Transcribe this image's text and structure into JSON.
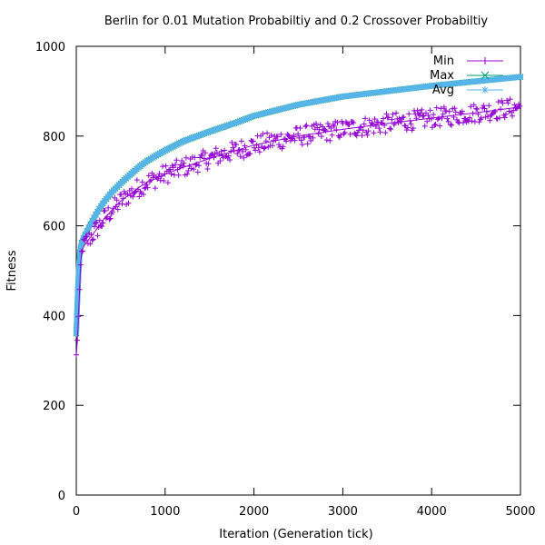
{
  "chart_data": {
    "type": "line",
    "title": "Berlin for 0.01 Mutation Probabiltiy and 0.2 Crossover Probabiltiy",
    "xlabel": "Iteration (Generation tick)",
    "ylabel": "Fitness",
    "xlim": [
      0,
      5000
    ],
    "ylim": [
      0,
      1000
    ],
    "xticks": [
      0,
      1000,
      2000,
      3000,
      4000,
      5000
    ],
    "yticks": [
      0,
      200,
      400,
      600,
      800,
      1000
    ],
    "grid": false,
    "legend_position": "top-right",
    "series": [
      {
        "name": "Min",
        "color": "#9400d3",
        "marker": "+",
        "x": [
          0,
          10,
          20,
          30,
          40,
          50,
          60,
          70,
          80,
          100,
          150,
          200,
          250,
          300,
          400,
          500,
          600,
          700,
          800,
          1000,
          1200,
          1500,
          1800,
          2000,
          2500,
          3000,
          3500,
          4000,
          4500,
          5000
        ],
        "values": [
          310,
          340,
          380,
          420,
          470,
          520,
          540,
          548,
          552,
          560,
          572,
          585,
          598,
          612,
          635,
          655,
          670,
          685,
          697,
          715,
          730,
          750,
          768,
          780,
          800,
          815,
          828,
          840,
          852,
          865
        ],
        "spread": 22
      },
      {
        "name": "Max",
        "color": "#009e73",
        "marker": "x",
        "x": [
          0,
          10,
          20,
          30,
          40,
          50,
          60,
          70,
          80,
          100,
          150,
          200,
          250,
          300,
          400,
          500,
          600,
          700,
          800,
          1000,
          1200,
          1500,
          1800,
          2000,
          2500,
          3000,
          3500,
          4000,
          4500,
          5000
        ],
        "values": [
          360,
          420,
          470,
          510,
          540,
          555,
          562,
          568,
          572,
          580,
          600,
          618,
          635,
          650,
          675,
          695,
          713,
          730,
          745,
          768,
          788,
          810,
          830,
          845,
          870,
          888,
          900,
          912,
          922,
          932
        ]
      },
      {
        "name": "Avg",
        "color": "#56b4e9",
        "marker": "*",
        "x": [
          0,
          10,
          20,
          30,
          40,
          50,
          60,
          70,
          80,
          100,
          150,
          200,
          250,
          300,
          400,
          500,
          600,
          700,
          800,
          1000,
          1200,
          1500,
          1800,
          2000,
          2500,
          3000,
          3500,
          4000,
          4500,
          5000
        ],
        "values": [
          360,
          420,
          470,
          510,
          540,
          555,
          562,
          568,
          572,
          580,
          600,
          618,
          635,
          650,
          675,
          695,
          713,
          730,
          745,
          768,
          788,
          810,
          830,
          845,
          870,
          888,
          900,
          912,
          922,
          932
        ]
      }
    ]
  }
}
